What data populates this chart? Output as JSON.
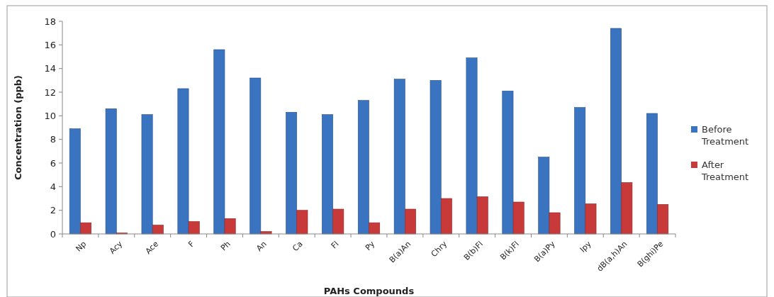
{
  "chart_data": {
    "type": "bar",
    "xlabel": "PAHs Compounds",
    "ylabel": "Concentration (ppb)",
    "categories": [
      "Np",
      "Acy",
      "Ace",
      "F",
      "Ph",
      "An",
      "Ca",
      "Fl",
      "Py",
      "B(a)An",
      "Chry",
      "B(b)Fl",
      "B(k)Fl",
      "B(a)Py",
      "Ipy",
      "dB(a,h)An",
      "B(ghi)Pe"
    ],
    "series": [
      {
        "name": "Before Treatment",
        "color": "#3a74c0",
        "values": [
          8.9,
          10.6,
          10.1,
          12.3,
          15.6,
          13.2,
          10.3,
          10.1,
          11.3,
          13.1,
          13.0,
          14.9,
          12.1,
          6.5,
          10.7,
          17.4,
          10.2
        ]
      },
      {
        "name": "After Treatment",
        "color": "#c83a3a",
        "values": [
          0.95,
          0.08,
          0.75,
          1.05,
          1.3,
          0.2,
          2.0,
          2.1,
          0.95,
          2.1,
          3.0,
          3.15,
          2.7,
          1.8,
          2.55,
          4.35,
          2.5
        ]
      }
    ],
    "ylim": [
      0,
      18
    ],
    "yticks": [
      0,
      2,
      4,
      6,
      8,
      10,
      12,
      14,
      16,
      18
    ],
    "grid": false,
    "legend": "right"
  }
}
